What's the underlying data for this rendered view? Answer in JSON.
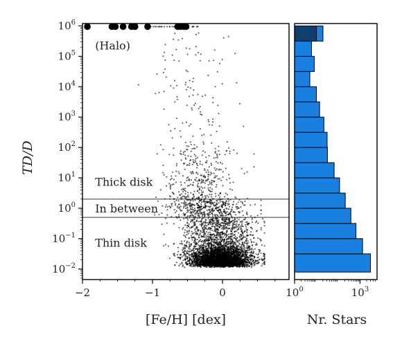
{
  "chart_data": [
    {
      "type": "scatter",
      "xlabel": "[Fe/H] [dex]",
      "ylabel": "TD/D",
      "xlim": [
        -2.0,
        0.95
      ],
      "ylim": [
        0.0045,
        1200000
      ],
      "yscale": "log",
      "x_ticks": [
        {
          "value": -2,
          "label": "−2"
        },
        {
          "value": -1,
          "label": "−1"
        },
        {
          "value": 0,
          "label": "0"
        }
      ],
      "y_ticks": [
        {
          "value": 0.01,
          "base": "10",
          "exp": "−2"
        },
        {
          "value": 0.1,
          "base": "10",
          "exp": "−1"
        },
        {
          "value": 1,
          "base": "10",
          "exp": "0"
        },
        {
          "value": 10,
          "base": "10",
          "exp": "1"
        },
        {
          "value": 100,
          "base": "10",
          "exp": "2"
        },
        {
          "value": 1000,
          "base": "10",
          "exp": "3"
        },
        {
          "value": 10000,
          "base": "10",
          "exp": "4"
        },
        {
          "value": 100000,
          "base": "10",
          "exp": "5"
        },
        {
          "value": 1000000,
          "base": "10",
          "exp": "6"
        }
      ],
      "threshold_lines": [
        2,
        0.5
      ],
      "region_labels": [
        {
          "text": "(Halo)",
          "fe_h": -1.8,
          "td_d": 230000
        },
        {
          "text": "Thick disk",
          "fe_h": -1.8,
          "td_d": 7.5
        },
        {
          "text": "In between",
          "fe_h": -1.8,
          "td_d": 1.0
        },
        {
          "text": "Thin disk",
          "fe_h": -1.8,
          "td_d": 0.075
        }
      ],
      "halo_large_points_fe_h": [
        -1.93,
        -1.58,
        -1.53,
        -1.42,
        -1.3,
        -1.25,
        -1.07,
        -0.64,
        -0.6,
        -0.55,
        -0.52
      ]
    },
    {
      "type": "bar",
      "orientation": "horizontal",
      "xlabel": "Nr. Stars",
      "xscale": "log",
      "xlim": [
        1,
        6000
      ],
      "x_ticks": [
        {
          "value": 1,
          "base": "10",
          "exp": "0"
        },
        {
          "value": 1000,
          "base": "10",
          "exp": "3"
        }
      ],
      "bar_color": "#1a80e0",
      "bin_edges_log10": [
        -2.1,
        -1.5,
        -1.0,
        -0.5,
        0.0,
        0.5,
        1.0,
        1.5,
        2.0,
        2.5,
        3.0,
        3.5,
        4.0,
        4.5,
        5.0,
        5.5,
        6.0
      ],
      "counts": [
        3000,
        1300,
        650,
        380,
        210,
        115,
        65,
        32,
        31,
        22,
        14,
        10,
        5,
        8,
        6,
        20
      ],
      "top_bin_dark_count": 10,
      "top_bin_dark_color": "#0f3f6e"
    }
  ]
}
